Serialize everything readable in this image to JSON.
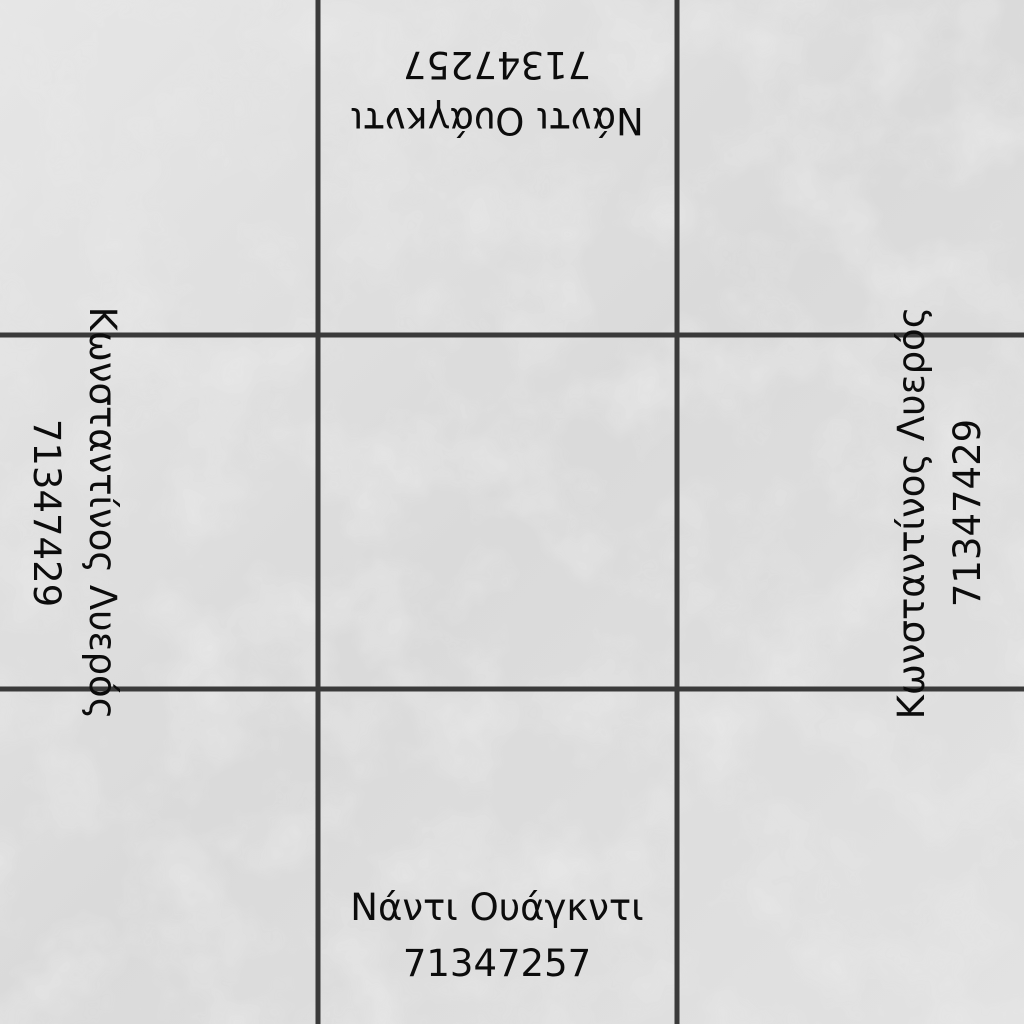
{
  "labels": {
    "top": {
      "name": "Νάντι Ουάγκντι",
      "number": "71347257"
    },
    "bottom": {
      "name": "Νάντι Ουάγκντι",
      "number": "71347257"
    },
    "left": {
      "name": "Κωνσταντίνος Λυερός",
      "number": "71347429"
    },
    "right": {
      "name": "Κωνσταντίνος Λυερός",
      "number": "71347429"
    }
  },
  "colors": {
    "tile": "#dcdcdc",
    "grout": "#3a3a3a",
    "text": "#0c0c0c"
  }
}
